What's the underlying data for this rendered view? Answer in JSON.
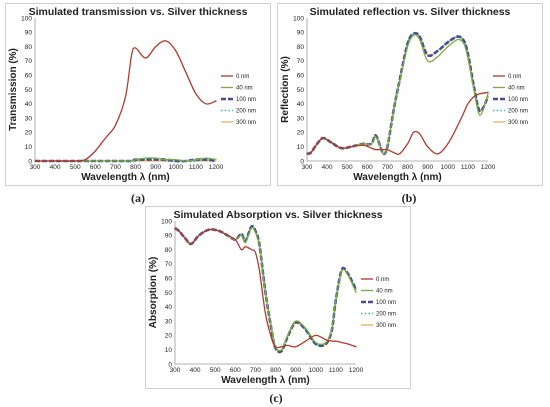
{
  "captions": [
    "(a)",
    "(b)",
    "(c)"
  ],
  "legend_labels": [
    "0 nm",
    "40 nm",
    "100 nm",
    "200 nm",
    "300 nm"
  ],
  "series_colors": [
    "#b03a2e",
    "#77ab43",
    "#4b4b8f",
    "#2ab5b8",
    "#e8a33c"
  ],
  "chart_data": [
    {
      "type": "line",
      "title": "Simulated transmission vs. Silver thickness",
      "xlabel": "Wavelength λ (nm)",
      "ylabel": "Transmission (%)",
      "xlim": [
        300,
        1200
      ],
      "ylim": [
        0,
        100
      ],
      "xticks": [
        300,
        400,
        500,
        600,
        700,
        800,
        900,
        1000,
        1100,
        1200
      ],
      "yticks": [
        0,
        10,
        20,
        30,
        40,
        50,
        60,
        70,
        80,
        90,
        100
      ],
      "grid": false,
      "legend": "right",
      "x": [
        300,
        400,
        500,
        550,
        600,
        650,
        700,
        750,
        780,
        800,
        850,
        900,
        950,
        1000,
        1050,
        1100,
        1150,
        1200
      ],
      "series": [
        {
          "name": "0 nm",
          "values": [
            0,
            0,
            0,
            1,
            7,
            16,
            25,
            45,
            74,
            79,
            72,
            80,
            84,
            77,
            62,
            47,
            40,
            42
          ]
        },
        {
          "name": "40 nm",
          "values": [
            0,
            0,
            0,
            0,
            0,
            0,
            0,
            0,
            0,
            1,
            2,
            2,
            1,
            1,
            0,
            1,
            2,
            1
          ]
        },
        {
          "name": "100 nm",
          "values": [
            0,
            0,
            0,
            0,
            0,
            0,
            0,
            0,
            0,
            1,
            1,
            1,
            1,
            0,
            0,
            1,
            1,
            0
          ]
        },
        {
          "name": "200 nm",
          "values": [
            0,
            0,
            0,
            0,
            0,
            0,
            0,
            0,
            0,
            0,
            1,
            1,
            0,
            0,
            0,
            0,
            1,
            0
          ]
        },
        {
          "name": "300 nm",
          "values": [
            0,
            0,
            0,
            0,
            0,
            0,
            0,
            0,
            0,
            0,
            0,
            0,
            0,
            0,
            0,
            0,
            0,
            0
          ]
        }
      ]
    },
    {
      "type": "line",
      "title": "Simulated reflection vs. Silver thickness",
      "xlabel": "Wavelength λ (nm)",
      "ylabel": "Reflection (%)",
      "xlim": [
        300,
        1200
      ],
      "ylim": [
        0,
        100
      ],
      "xticks": [
        300,
        400,
        500,
        600,
        700,
        800,
        900,
        1000,
        1100,
        1200
      ],
      "yticks": [
        0,
        10,
        20,
        30,
        40,
        50,
        60,
        70,
        80,
        90,
        100
      ],
      "grid": false,
      "legend": "right",
      "x": [
        300,
        320,
        350,
        380,
        420,
        470,
        520,
        580,
        620,
        640,
        660,
        680,
        700,
        730,
        760,
        800,
        830,
        860,
        900,
        950,
        1000,
        1050,
        1080,
        1100,
        1130,
        1160,
        1200
      ],
      "series": [
        {
          "name": "0 nm",
          "values": [
            5,
            6,
            12,
            16,
            13,
            9,
            10,
            11,
            9,
            8,
            8,
            8,
            8,
            6,
            5,
            12,
            20,
            19,
            10,
            5,
            12,
            25,
            34,
            40,
            45,
            47,
            48
          ]
        },
        {
          "name": "40 nm",
          "values": [
            5,
            6,
            12,
            16,
            13,
            9,
            10,
            12,
            12,
            17,
            12,
            5,
            10,
            35,
            55,
            80,
            88,
            85,
            70,
            73,
            80,
            85,
            82,
            72,
            50,
            32,
            47
          ]
        },
        {
          "name": "100 nm",
          "values": [
            5,
            6,
            12,
            16,
            13,
            9,
            10,
            12,
            12,
            18,
            12,
            5,
            10,
            35,
            56,
            82,
            89,
            87,
            74,
            77,
            83,
            87,
            84,
            75,
            52,
            35,
            45
          ]
        },
        {
          "name": "200 nm",
          "values": [
            5,
            6,
            12,
            16,
            13,
            9,
            10,
            12,
            12,
            18,
            12,
            5,
            10,
            35,
            56,
            82,
            89,
            87,
            74,
            77,
            83,
            87,
            84,
            75,
            52,
            35,
            45
          ]
        },
        {
          "name": "300 nm",
          "values": [
            5,
            6,
            12,
            16,
            13,
            9,
            10,
            12,
            12,
            18,
            12,
            5,
            10,
            35,
            56,
            82,
            89,
            87,
            74,
            77,
            83,
            87,
            84,
            75,
            52,
            35,
            45
          ]
        }
      ]
    },
    {
      "type": "line",
      "title": "Simulated Absorption vs. Silver thickness",
      "xlabel": "Wavelength λ (nm)",
      "ylabel": "Absorption (%)",
      "xlim": [
        300,
        1200
      ],
      "ylim": [
        0,
        100
      ],
      "xticks": [
        300,
        400,
        500,
        600,
        700,
        800,
        900,
        1000,
        1100,
        1200
      ],
      "yticks": [
        0,
        10,
        20,
        30,
        40,
        50,
        60,
        70,
        80,
        90,
        100
      ],
      "grid": false,
      "legend": "right",
      "x": [
        300,
        320,
        350,
        380,
        420,
        470,
        520,
        560,
        600,
        630,
        650,
        680,
        700,
        720,
        750,
        780,
        800,
        830,
        860,
        900,
        950,
        1000,
        1050,
        1080,
        1100,
        1130,
        1160,
        1200
      ],
      "series": [
        {
          "name": "0 nm",
          "values": [
            95,
            93,
            88,
            84,
            90,
            94,
            93,
            90,
            87,
            80,
            82,
            80,
            78,
            65,
            35,
            18,
            12,
            12,
            13,
            12,
            16,
            20,
            17,
            16,
            16,
            15,
            14,
            12
          ]
        },
        {
          "name": "40 nm",
          "values": [
            95,
            93,
            88,
            84,
            90,
            94,
            93,
            90,
            87,
            90,
            85,
            95,
            92,
            82,
            50,
            25,
            12,
            10,
            20,
            30,
            25,
            15,
            15,
            25,
            45,
            65,
            62,
            50
          ]
        },
        {
          "name": "100 nm",
          "values": [
            95,
            93,
            88,
            84,
            90,
            94,
            93,
            90,
            87,
            91,
            86,
            96,
            93,
            83,
            50,
            24,
            11,
            9,
            19,
            29,
            24,
            14,
            14,
            24,
            45,
            66,
            63,
            52
          ]
        },
        {
          "name": "200 nm",
          "values": [
            95,
            93,
            88,
            84,
            90,
            94,
            93,
            90,
            87,
            91,
            86,
            96,
            93,
            83,
            50,
            24,
            11,
            9,
            19,
            29,
            24,
            14,
            14,
            24,
            45,
            66,
            63,
            52
          ]
        },
        {
          "name": "300 nm",
          "values": [
            95,
            93,
            88,
            84,
            90,
            94,
            93,
            90,
            87,
            91,
            86,
            96,
            93,
            83,
            50,
            24,
            11,
            9,
            19,
            29,
            24,
            14,
            14,
            24,
            45,
            66,
            63,
            52
          ]
        }
      ]
    }
  ]
}
